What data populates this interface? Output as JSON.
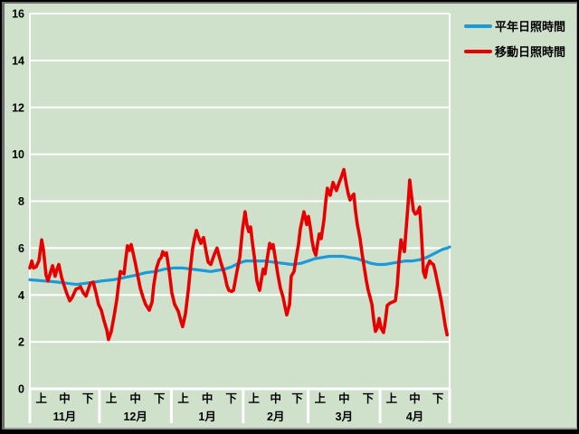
{
  "window": {
    "bg_color": "#cfe0cb",
    "border_color": "#000000",
    "grid_color": "#ffffff",
    "text_color": "#000000"
  },
  "legend": {
    "items": [
      {
        "label": "平年日照時間",
        "color": "#1b9ad8"
      },
      {
        "label": "移動日照時間",
        "color": "#e80000"
      }
    ]
  },
  "chart_data": {
    "type": "line",
    "title": "",
    "xlabel": "",
    "ylabel": "",
    "ylim": [
      0,
      16
    ],
    "ytick_step": 2,
    "ytick_labels": [
      "0",
      "2",
      "4",
      "6",
      "8",
      "10",
      "12",
      "14",
      "16"
    ],
    "grid": true,
    "legend_position": "top-right",
    "x_total_days": 181,
    "x_axis": {
      "period_labels": [
        "上",
        "中",
        "下"
      ],
      "months": [
        {
          "label": "11月",
          "days": 30
        },
        {
          "label": "12月",
          "days": 31
        },
        {
          "label": "1月",
          "days": 31
        },
        {
          "label": "2月",
          "days": 28
        },
        {
          "label": "3月",
          "days": 31
        },
        {
          "label": "4月",
          "days": 30
        }
      ]
    },
    "series": [
      {
        "name": "平年日照時間",
        "color": "#1b9ad8",
        "width": 3.2,
        "points": [
          [
            0,
            4.65
          ],
          [
            6,
            4.6
          ],
          [
            12,
            4.55
          ],
          [
            16,
            4.5
          ],
          [
            20,
            4.45
          ],
          [
            24,
            4.5
          ],
          [
            28,
            4.55
          ],
          [
            31,
            4.6
          ],
          [
            36,
            4.65
          ],
          [
            41,
            4.75
          ],
          [
            46,
            4.85
          ],
          [
            50,
            4.95
          ],
          [
            54,
            5.0
          ],
          [
            58,
            5.1
          ],
          [
            62,
            5.15
          ],
          [
            66,
            5.15
          ],
          [
            70,
            5.1
          ],
          [
            74,
            5.05
          ],
          [
            78,
            5.0
          ],
          [
            81,
            5.05
          ],
          [
            84,
            5.1
          ],
          [
            87,
            5.2
          ],
          [
            90,
            5.35
          ],
          [
            93,
            5.45
          ],
          [
            97,
            5.45
          ],
          [
            101,
            5.45
          ],
          [
            105,
            5.4
          ],
          [
            109,
            5.35
          ],
          [
            113,
            5.3
          ],
          [
            117,
            5.35
          ],
          [
            120,
            5.45
          ],
          [
            123,
            5.55
          ],
          [
            126,
            5.6
          ],
          [
            129,
            5.65
          ],
          [
            132,
            5.65
          ],
          [
            135,
            5.65
          ],
          [
            138,
            5.6
          ],
          [
            141,
            5.55
          ],
          [
            144,
            5.45
          ],
          [
            147,
            5.35
          ],
          [
            150,
            5.3
          ],
          [
            153,
            5.3
          ],
          [
            156,
            5.35
          ],
          [
            159,
            5.4
          ],
          [
            162,
            5.45
          ],
          [
            165,
            5.45
          ],
          [
            168,
            5.5
          ],
          [
            171,
            5.6
          ],
          [
            174,
            5.75
          ],
          [
            176,
            5.85
          ],
          [
            178,
            5.95
          ],
          [
            180,
            6.0
          ],
          [
            181,
            6.05
          ]
        ]
      },
      {
        "name": "移動日照時間",
        "color": "#e80000",
        "width": 3.6,
        "points": [
          [
            0,
            5.15
          ],
          [
            0.8,
            5.45
          ],
          [
            1.6,
            5.15
          ],
          [
            2.7,
            5.2
          ],
          [
            3.9,
            5.45
          ],
          [
            5.1,
            6.35
          ],
          [
            5.9,
            5.9
          ],
          [
            7.0,
            4.85
          ],
          [
            7.8,
            4.6
          ],
          [
            9.0,
            5.0
          ],
          [
            9.8,
            5.25
          ],
          [
            10.9,
            4.8
          ],
          [
            11.7,
            5.1
          ],
          [
            12.5,
            5.3
          ],
          [
            13.7,
            4.75
          ],
          [
            14.8,
            4.4
          ],
          [
            16.0,
            4.05
          ],
          [
            17.2,
            3.75
          ],
          [
            18.3,
            3.9
          ],
          [
            19.9,
            4.25
          ],
          [
            21.1,
            4.3
          ],
          [
            21.8,
            4.35
          ],
          [
            23.0,
            4.1
          ],
          [
            24.2,
            3.95
          ],
          [
            25.4,
            4.3
          ],
          [
            26.1,
            4.5
          ],
          [
            27.3,
            4.55
          ],
          [
            28.5,
            4.1
          ],
          [
            29.6,
            3.6
          ],
          [
            30.8,
            3.35
          ],
          [
            32.0,
            2.9
          ],
          [
            33.2,
            2.5
          ],
          [
            33.9,
            2.1
          ],
          [
            35.1,
            2.45
          ],
          [
            36.3,
            3.1
          ],
          [
            37.5,
            3.8
          ],
          [
            38.2,
            4.4
          ],
          [
            39.0,
            5.0
          ],
          [
            39.8,
            4.95
          ],
          [
            40.6,
            4.9
          ],
          [
            41.3,
            5.5
          ],
          [
            42.1,
            6.1
          ],
          [
            42.9,
            5.9
          ],
          [
            43.7,
            6.15
          ],
          [
            44.5,
            5.8
          ],
          [
            45.6,
            5.3
          ],
          [
            46.4,
            4.9
          ],
          [
            47.6,
            4.3
          ],
          [
            48.8,
            3.9
          ],
          [
            49.9,
            3.6
          ],
          [
            51.5,
            3.35
          ],
          [
            52.7,
            3.7
          ],
          [
            53.4,
            4.4
          ],
          [
            54.6,
            5.15
          ],
          [
            55.8,
            5.5
          ],
          [
            56.6,
            5.6
          ],
          [
            57.3,
            5.85
          ],
          [
            58.1,
            5.7
          ],
          [
            58.9,
            5.8
          ],
          [
            60.1,
            5.0
          ],
          [
            61.2,
            4.1
          ],
          [
            62.4,
            3.6
          ],
          [
            64.0,
            3.3
          ],
          [
            65.1,
            2.9
          ],
          [
            65.9,
            2.65
          ],
          [
            67.1,
            3.2
          ],
          [
            68.3,
            4.2
          ],
          [
            69.4,
            5.3
          ],
          [
            70.2,
            6.0
          ],
          [
            71.0,
            6.4
          ],
          [
            71.8,
            6.75
          ],
          [
            72.6,
            6.5
          ],
          [
            73.7,
            6.2
          ],
          [
            74.9,
            6.45
          ],
          [
            76.1,
            5.8
          ],
          [
            76.9,
            5.4
          ],
          [
            78.0,
            5.3
          ],
          [
            79.6,
            5.75
          ],
          [
            80.7,
            6.0
          ],
          [
            82.3,
            5.4
          ],
          [
            83.9,
            4.9
          ],
          [
            85.0,
            4.4
          ],
          [
            85.8,
            4.2
          ],
          [
            87.0,
            4.15
          ],
          [
            87.8,
            4.2
          ],
          [
            89.3,
            5.0
          ],
          [
            90.5,
            5.6
          ],
          [
            91.7,
            6.8
          ],
          [
            92.8,
            7.55
          ],
          [
            93.6,
            7.0
          ],
          [
            94.4,
            6.7
          ],
          [
            95.2,
            6.9
          ],
          [
            96.0,
            6.2
          ],
          [
            96.7,
            5.7
          ],
          [
            97.9,
            4.6
          ],
          [
            99.1,
            4.2
          ],
          [
            99.9,
            4.7
          ],
          [
            100.6,
            5.1
          ],
          [
            101.4,
            4.9
          ],
          [
            102.6,
            5.7
          ],
          [
            103.4,
            6.2
          ],
          [
            104.1,
            6.0
          ],
          [
            104.9,
            6.15
          ],
          [
            106.1,
            5.4
          ],
          [
            106.9,
            4.9
          ],
          [
            108.0,
            4.3
          ],
          [
            109.2,
            3.9
          ],
          [
            110.0,
            3.5
          ],
          [
            110.8,
            3.15
          ],
          [
            112.0,
            3.6
          ],
          [
            112.7,
            4.8
          ],
          [
            113.9,
            5.0
          ],
          [
            114.7,
            5.5
          ],
          [
            115.9,
            6.2
          ],
          [
            116.6,
            6.8
          ],
          [
            117.4,
            7.2
          ],
          [
            118.2,
            7.55
          ],
          [
            119.4,
            7.0
          ],
          [
            120.1,
            7.35
          ],
          [
            120.9,
            6.9
          ],
          [
            121.7,
            6.3
          ],
          [
            122.5,
            5.9
          ],
          [
            123.3,
            5.7
          ],
          [
            124.1,
            6.2
          ],
          [
            124.8,
            6.6
          ],
          [
            125.6,
            6.4
          ],
          [
            126.8,
            7.2
          ],
          [
            127.6,
            8.0
          ],
          [
            128.3,
            8.55
          ],
          [
            129.5,
            8.25
          ],
          [
            130.7,
            8.8
          ],
          [
            131.5,
            8.6
          ],
          [
            132.2,
            8.45
          ],
          [
            133.4,
            8.8
          ],
          [
            134.2,
            9.0
          ],
          [
            135.4,
            9.35
          ],
          [
            136.5,
            8.7
          ],
          [
            137.3,
            8.3
          ],
          [
            138.1,
            8.05
          ],
          [
            138.9,
            8.2
          ],
          [
            139.7,
            8.3
          ],
          [
            140.4,
            7.6
          ],
          [
            141.2,
            7.0
          ],
          [
            142.4,
            6.4
          ],
          [
            143.2,
            5.8
          ],
          [
            144.0,
            5.3
          ],
          [
            145.1,
            4.6
          ],
          [
            145.9,
            4.2
          ],
          [
            146.7,
            3.9
          ],
          [
            147.5,
            3.6
          ],
          [
            148.3,
            2.9
          ],
          [
            149.0,
            2.45
          ],
          [
            149.8,
            2.6
          ],
          [
            150.6,
            3.0
          ],
          [
            151.4,
            2.6
          ],
          [
            152.2,
            2.45
          ],
          [
            152.5,
            2.4
          ],
          [
            153.3,
            2.9
          ],
          [
            154.1,
            3.55
          ],
          [
            155.3,
            3.65
          ],
          [
            156.4,
            3.7
          ],
          [
            157.6,
            3.75
          ],
          [
            158.4,
            4.4
          ],
          [
            159.2,
            5.5
          ],
          [
            160.0,
            6.35
          ],
          [
            160.7,
            6.1
          ],
          [
            161.5,
            5.85
          ],
          [
            162.3,
            6.9
          ],
          [
            163.1,
            7.9
          ],
          [
            163.8,
            8.9
          ],
          [
            164.6,
            8.2
          ],
          [
            165.4,
            7.6
          ],
          [
            166.2,
            7.45
          ],
          [
            167.0,
            7.5
          ],
          [
            168.1,
            7.75
          ],
          [
            168.9,
            6.5
          ],
          [
            169.7,
            5.0
          ],
          [
            170.5,
            4.75
          ],
          [
            171.3,
            5.2
          ],
          [
            172.4,
            5.45
          ],
          [
            173.2,
            5.35
          ],
          [
            174.0,
            5.3
          ],
          [
            174.8,
            5.0
          ],
          [
            175.6,
            4.6
          ],
          [
            176.7,
            4.1
          ],
          [
            177.5,
            3.7
          ],
          [
            178.3,
            3.2
          ],
          [
            179.1,
            2.7
          ],
          [
            179.9,
            2.3
          ]
        ]
      }
    ]
  }
}
